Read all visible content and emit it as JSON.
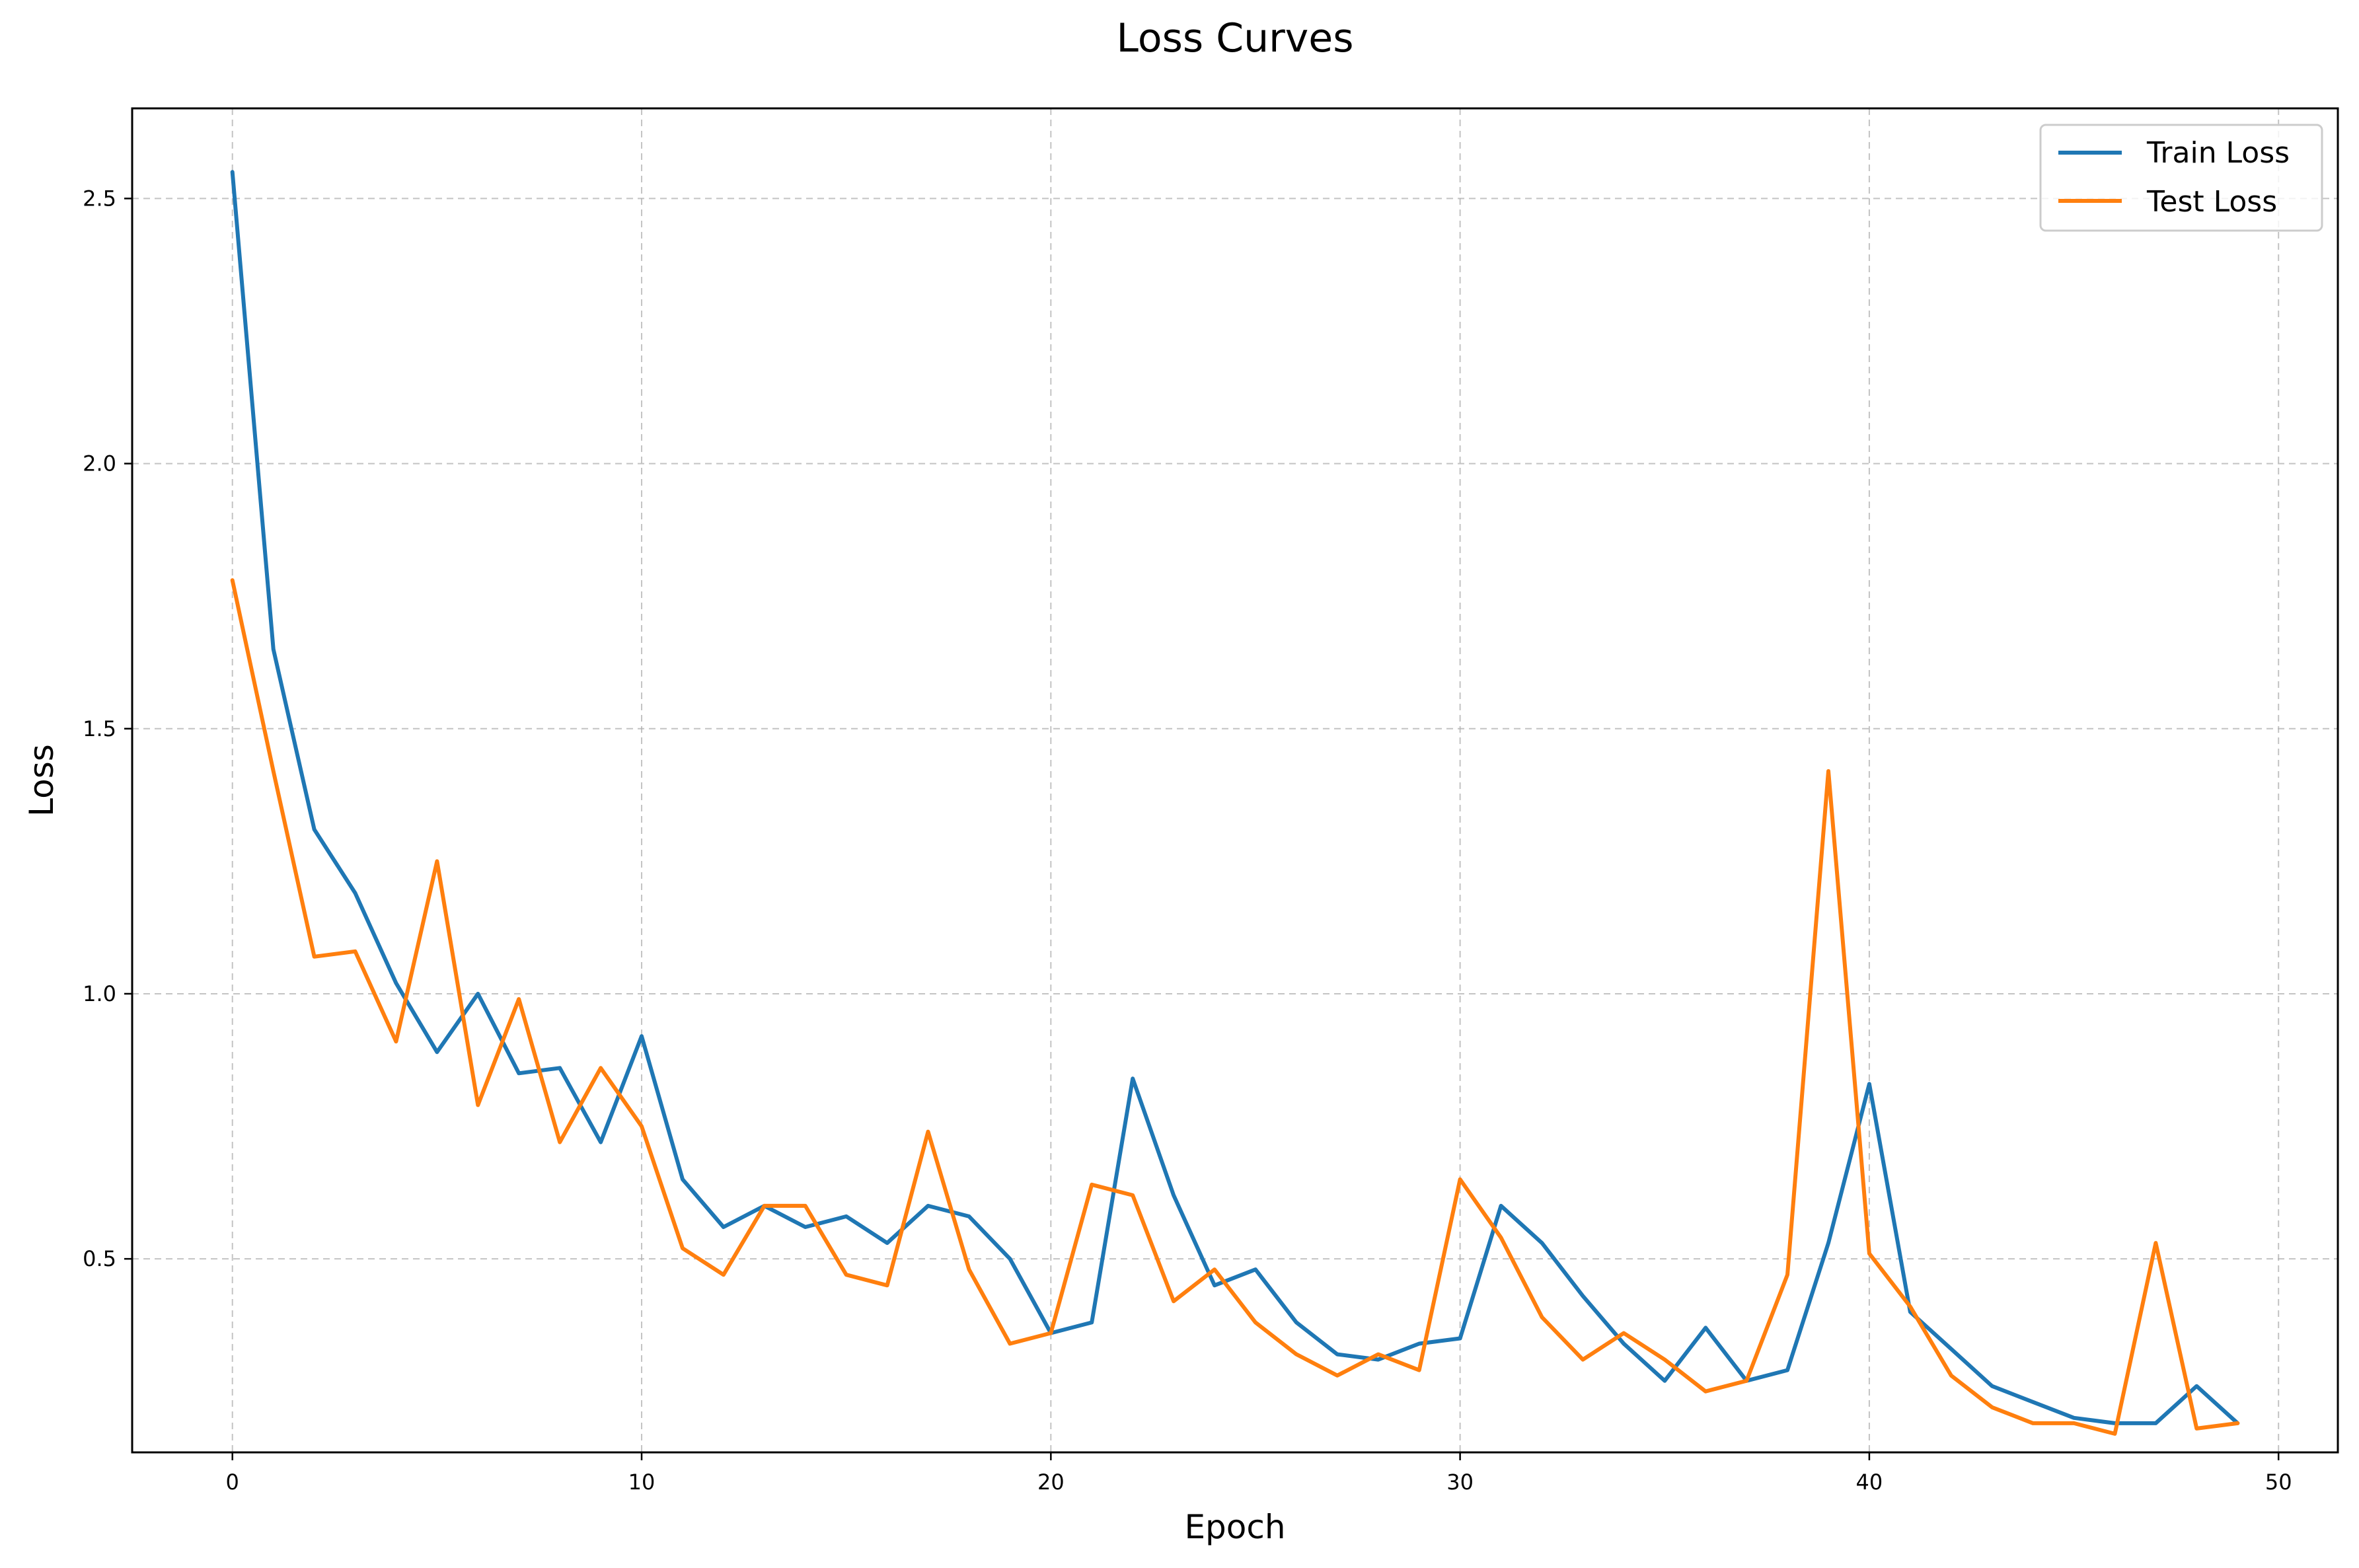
{
  "chart_data": {
    "type": "line",
    "title": "Loss Curves",
    "xlabel": "Epoch",
    "ylabel": "Loss",
    "xlim": [
      -2.45,
      51.45
    ],
    "ylim": [
      0.135,
      2.67
    ],
    "xticks": [
      0,
      10,
      20,
      30,
      40,
      50
    ],
    "yticks": [
      0.5,
      1.0,
      1.5,
      2.0,
      2.5
    ],
    "ytick_labels": [
      "0.5",
      "1.0",
      "1.5",
      "2.0",
      "2.5"
    ],
    "grid": true,
    "legend_position": "top-right",
    "x": [
      0,
      1,
      2,
      3,
      4,
      5,
      6,
      7,
      8,
      9,
      10,
      11,
      12,
      13,
      14,
      15,
      16,
      17,
      18,
      19,
      20,
      21,
      22,
      23,
      24,
      25,
      26,
      27,
      28,
      29,
      30,
      31,
      32,
      33,
      34,
      35,
      36,
      37,
      38,
      39,
      40,
      41,
      42,
      43,
      44,
      45,
      46,
      47,
      48,
      49
    ],
    "series": [
      {
        "name": "Train Loss",
        "color": "#1f77b4",
        "values": [
          2.55,
          1.65,
          1.31,
          1.19,
          1.02,
          0.89,
          1.0,
          0.85,
          0.86,
          0.72,
          0.92,
          0.65,
          0.56,
          0.6,
          0.56,
          0.58,
          0.53,
          0.6,
          0.58,
          0.5,
          0.36,
          0.38,
          0.84,
          0.62,
          0.45,
          0.48,
          0.38,
          0.32,
          0.31,
          0.34,
          0.35,
          0.6,
          0.53,
          0.43,
          0.34,
          0.27,
          0.37,
          0.27,
          0.29,
          0.53,
          0.83,
          0.4,
          0.33,
          0.26,
          0.23,
          0.2,
          0.19,
          0.19,
          0.26,
          0.19
        ]
      },
      {
        "name": "Test Loss",
        "color": "#ff7f0e",
        "values": [
          1.78,
          1.42,
          1.07,
          1.08,
          0.91,
          1.25,
          0.79,
          0.99,
          0.72,
          0.86,
          0.75,
          0.52,
          0.47,
          0.6,
          0.6,
          0.47,
          0.45,
          0.74,
          0.48,
          0.34,
          0.36,
          0.64,
          0.62,
          0.42,
          0.48,
          0.38,
          0.32,
          0.28,
          0.32,
          0.29,
          0.65,
          0.54,
          0.39,
          0.31,
          0.36,
          0.31,
          0.25,
          0.27,
          0.47,
          1.42,
          0.51,
          0.41,
          0.28,
          0.22,
          0.19,
          0.19,
          0.17,
          0.53,
          0.18,
          0.19
        ]
      }
    ]
  }
}
